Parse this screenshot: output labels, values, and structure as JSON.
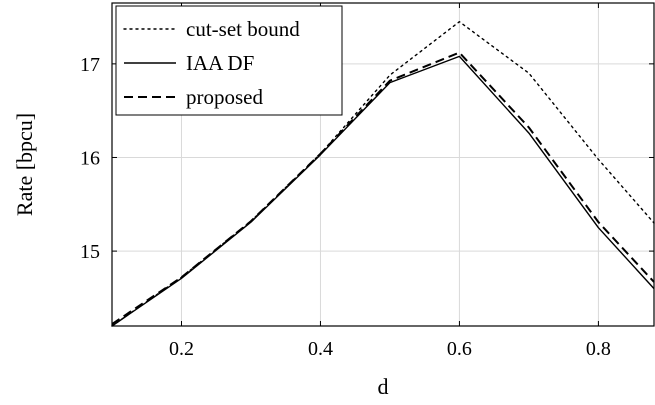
{
  "chart_data": {
    "type": "line",
    "xlabel": "d",
    "ylabel": "Rate [bpcu]",
    "xlim": [
      0.1,
      0.88
    ],
    "ylim": [
      14.2,
      17.65
    ],
    "grid": true,
    "legend_position": "top-left",
    "xticks": [
      {
        "value": 0.2,
        "label": "0.2"
      },
      {
        "value": 0.4,
        "label": "0.4"
      },
      {
        "value": 0.6,
        "label": "0.6"
      },
      {
        "value": 0.8,
        "label": "0.8"
      }
    ],
    "yticks": [
      {
        "value": 15,
        "label": "15"
      },
      {
        "value": 16,
        "label": "16"
      },
      {
        "value": 17,
        "label": "17"
      }
    ],
    "x": [
      0.1,
      0.2,
      0.3,
      0.4,
      0.5,
      0.6,
      0.7,
      0.8,
      0.88
    ],
    "series": [
      {
        "name": "cut-set bound",
        "style": "dotted",
        "values": [
          14.2,
          14.72,
          15.32,
          16.04,
          16.88,
          17.45,
          16.9,
          15.98,
          15.3
        ]
      },
      {
        "name": "IAA DF",
        "style": "solid",
        "values": [
          14.2,
          14.71,
          15.31,
          16.03,
          16.8,
          17.08,
          16.26,
          15.25,
          14.6
        ]
      },
      {
        "name": "proposed",
        "style": "dashed",
        "values": [
          14.22,
          14.72,
          15.32,
          16.04,
          16.82,
          17.12,
          16.32,
          15.31,
          14.67
        ]
      }
    ]
  }
}
